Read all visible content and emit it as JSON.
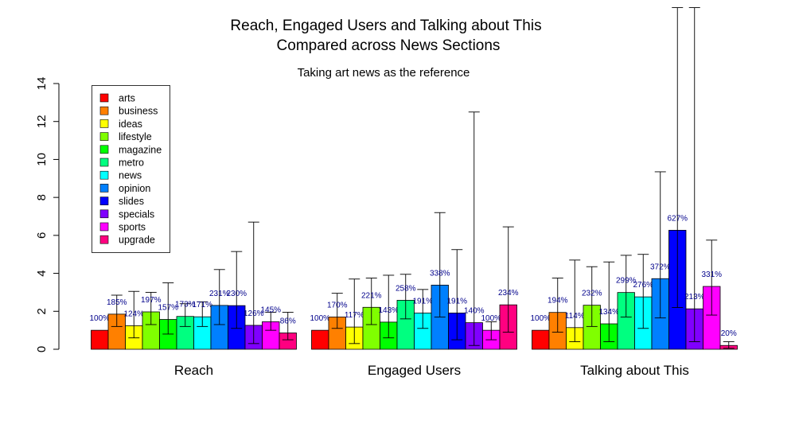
{
  "chart_data": {
    "type": "bar",
    "title": "Reach, Engaged Users and Talking about This Compared across News Sections",
    "title_lines": [
      "Reach, Engaged Users and Talking about This",
      "Compared across News Sections"
    ],
    "subtitle": "Taking art news as the reference",
    "xlabel": "",
    "ylabel": "",
    "ylim": [
      0,
      14
    ],
    "yticks": [
      0,
      2,
      4,
      6,
      8,
      10,
      12,
      14
    ],
    "grid": false,
    "legend_position": "top-left",
    "categories": [
      "Reach",
      "Engaged Users",
      "Talking about This"
    ],
    "series": [
      {
        "name": "arts",
        "color": "#FF0000",
        "values": [
          1.0,
          1.0,
          1.0
        ],
        "labels": [
          "100%",
          "100%",
          "100%"
        ],
        "err_low": [
          1.0,
          1.0,
          1.0
        ],
        "err_high": [
          1.0,
          1.0,
          1.0
        ]
      },
      {
        "name": "business",
        "color": "#FF8000",
        "values": [
          1.85,
          1.7,
          1.94
        ],
        "labels": [
          "185%",
          "170%",
          "194%"
        ],
        "err_low": [
          1.2,
          1.1,
          0.9
        ],
        "err_high": [
          2.85,
          2.95,
          3.75
        ]
      },
      {
        "name": "ideas",
        "color": "#FFFF00",
        "values": [
          1.24,
          1.17,
          1.14
        ],
        "labels": [
          "124%",
          "117%",
          "114%"
        ],
        "err_low": [
          0.6,
          0.3,
          0.4
        ],
        "err_high": [
          3.05,
          3.7,
          4.7
        ]
      },
      {
        "name": "lifestyle",
        "color": "#80FF00",
        "values": [
          1.97,
          2.21,
          2.32
        ],
        "labels": [
          "197%",
          "221%",
          "232%"
        ],
        "err_low": [
          1.3,
          1.3,
          1.2
        ],
        "err_high": [
          3.0,
          3.75,
          4.35
        ]
      },
      {
        "name": "magazine",
        "color": "#00FF00",
        "values": [
          1.57,
          1.43,
          1.34
        ],
        "labels": [
          "157%",
          "143%",
          "134%"
        ],
        "err_low": [
          0.8,
          0.6,
          0.4
        ],
        "err_high": [
          3.5,
          3.9,
          4.6
        ]
      },
      {
        "name": "metro",
        "color": "#00FF80",
        "values": [
          1.73,
          2.58,
          2.99
        ],
        "labels": [
          "173%",
          "258%",
          "299%"
        ],
        "err_low": [
          1.2,
          1.6,
          1.7
        ],
        "err_high": [
          2.4,
          3.95,
          4.95
        ]
      },
      {
        "name": "news",
        "color": "#00FFFF",
        "values": [
          1.71,
          1.91,
          2.76
        ],
        "labels": [
          "171%",
          "191%",
          "276%"
        ],
        "err_low": [
          1.2,
          1.1,
          1.1
        ],
        "err_high": [
          2.5,
          3.15,
          5.0
        ]
      },
      {
        "name": "opinion",
        "color": "#0080FF",
        "values": [
          2.31,
          3.38,
          3.72
        ],
        "labels": [
          "231%",
          "338%",
          "372%"
        ],
        "err_low": [
          1.3,
          1.7,
          1.65
        ],
        "err_high": [
          4.2,
          7.2,
          9.35
        ]
      },
      {
        "name": "slides",
        "color": "#0000FF",
        "values": [
          2.3,
          1.91,
          6.27
        ],
        "labels": [
          "230%",
          "191%",
          "627%"
        ],
        "err_low": [
          1.1,
          0.5,
          2.2
        ],
        "err_high": [
          5.15,
          5.25,
          18.0
        ]
      },
      {
        "name": "specials",
        "color": "#8000FF",
        "values": [
          1.26,
          1.4,
          2.13
        ],
        "labels": [
          "126%",
          "140%",
          "213%"
        ],
        "err_low": [
          0.3,
          0.2,
          0.4
        ],
        "err_high": [
          6.7,
          12.5,
          18.0
        ]
      },
      {
        "name": "sports",
        "color": "#FF00FF",
        "values": [
          1.45,
          1.0,
          3.31
        ],
        "labels": [
          "145%",
          "100%",
          "331%"
        ],
        "err_low": [
          1.0,
          0.5,
          1.8
        ],
        "err_high": [
          1.95,
          1.45,
          5.75
        ]
      },
      {
        "name": "upgrade",
        "color": "#FF0080",
        "values": [
          0.86,
          2.34,
          0.2
        ],
        "labels": [
          "86%",
          "234%",
          "20%"
        ],
        "err_low": [
          0.5,
          0.9,
          0.05
        ],
        "err_high": [
          1.95,
          6.45,
          0.4
        ]
      }
    ]
  }
}
